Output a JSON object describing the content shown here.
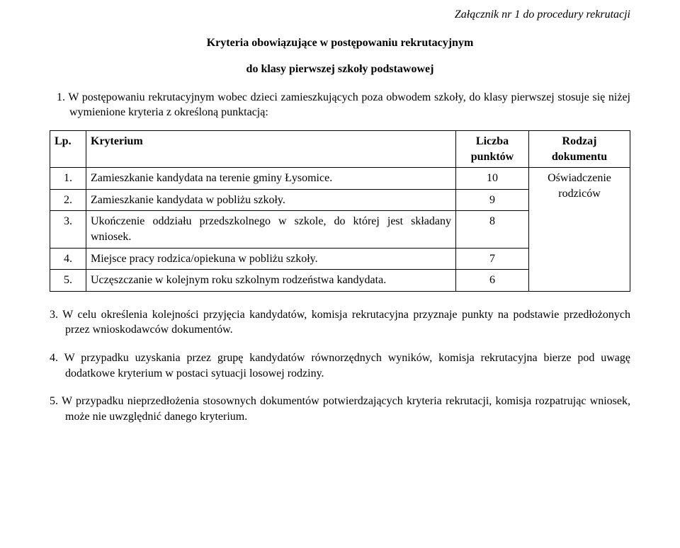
{
  "attachment_line": "Załącznik nr 1 do procedury rekrutacji",
  "title": "Kryteria obowiązujące w postępowaniu rekrutacyjnym",
  "subtitle": "do klasy pierwszej szkoły podstawowej",
  "intro": "1. W postępowaniu rekrutacyjnym wobec dzieci zamieszkujących poza obwodem szkoły, do klasy pierwszej stosuje się niżej wymienione kryteria z określoną punktacją:",
  "table": {
    "headers": {
      "lp": "Lp.",
      "kryterium": "Kryterium",
      "liczba": "Liczba punktów",
      "rodzaj": "Rodzaj dokumentu"
    },
    "rows": [
      {
        "lp": "1.",
        "k": "Zamieszkanie kandydata na terenie gminy Łysomice.",
        "n": "10",
        "justify": false
      },
      {
        "lp": "2.",
        "k": "Zamieszkanie kandydata w pobliżu szkoły.",
        "n": "9",
        "justify": false
      },
      {
        "lp": "3.",
        "k": "Ukończenie oddziału przedszkolnego w szkole, do której jest składany wniosek.",
        "n": "8",
        "justify": true
      },
      {
        "lp": "4.",
        "k": "Miejsce pracy rodzica/opiekuna w pobliżu szkoły.",
        "n": "7",
        "justify": false
      },
      {
        "lp": "5.",
        "k": "Uczęszczanie w kolejnym roku szkolnym rodzeństwa kandydata.",
        "n": "6",
        "justify": false
      }
    ],
    "doc_label": "Oświadczenie rodziców"
  },
  "para3": "3. W celu określenia kolejności przyjęcia kandydatów, komisja rekrutacyjna przyznaje punkty na podstawie przedłożonych przez wnioskodawców dokumentów.",
  "para4": "4. W przypadku uzyskania przez grupę kandydatów równorzędnych wyników, komisja rekrutacyjna bierze pod uwagę dodatkowe kryterium w postaci sytuacji losowej rodziny.",
  "para5": "5. W przypadku nieprzedłożenia stosownych dokumentów potwierdzających kryteria rekrutacji, komisja rozpatrując wniosek, może nie uwzględnić danego kryterium."
}
